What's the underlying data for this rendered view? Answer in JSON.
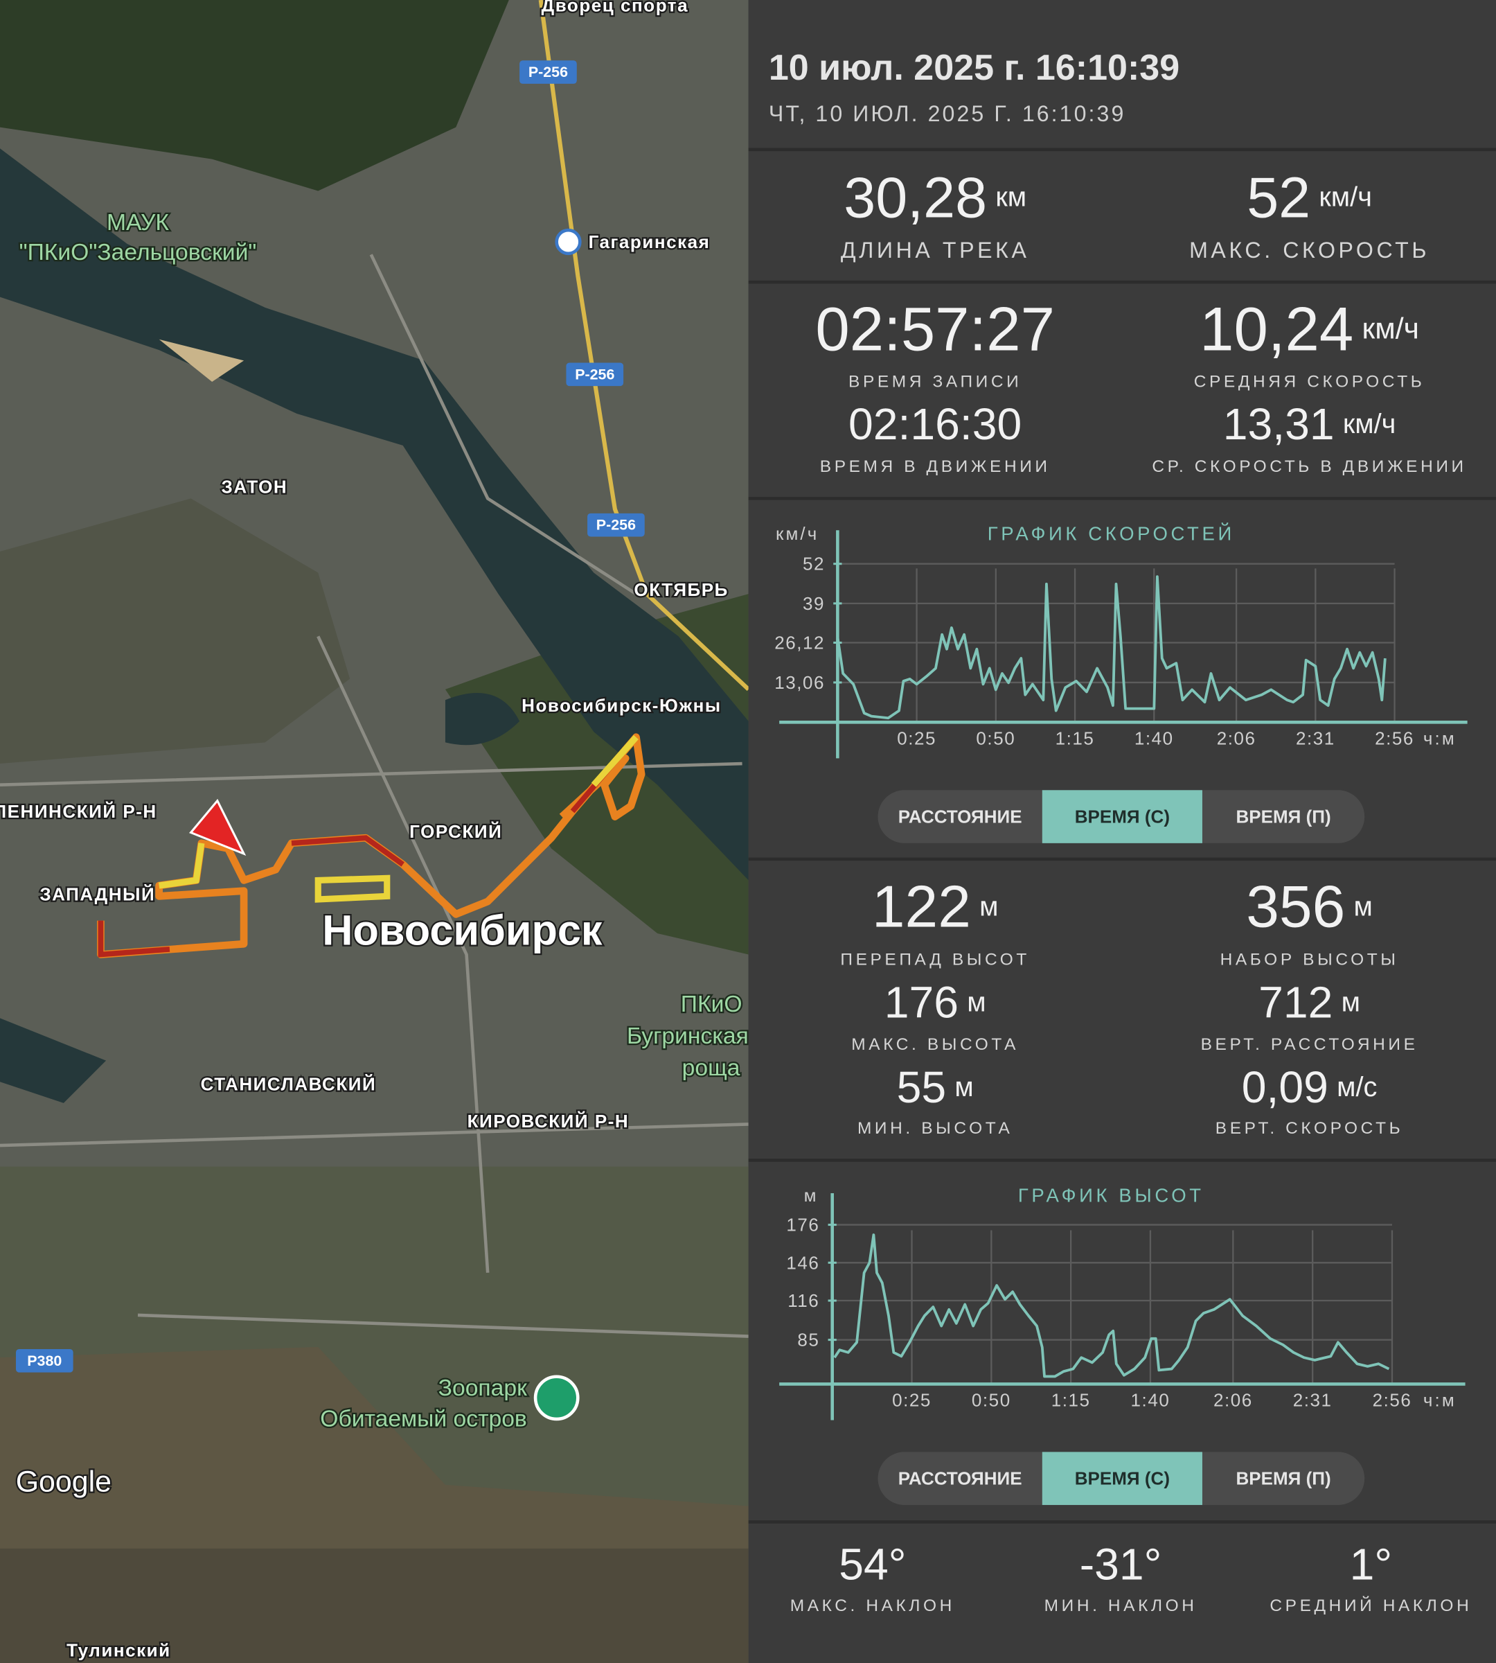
{
  "header": {
    "title": "10 июл. 2025 г. 16:10:39",
    "subtitle": "ЧТ, 10 ИЮЛ. 2025 Г. 16:10:39"
  },
  "track_stats": [
    {
      "value": "30,28",
      "unit": "км",
      "label": "ДЛИНА ТРЕКА"
    },
    {
      "value": "52",
      "unit": "км/ч",
      "label": "МАКС. СКОРОСТЬ"
    },
    {
      "value": "02:57:27",
      "label": "ВРЕМЯ ЗАПИСИ"
    },
    {
      "value": "10,24",
      "unit": "км/ч",
      "label": "СРЕДНЯЯ СКОРОСТЬ"
    },
    {
      "value": "02:16:30",
      "label": "ВРЕМЯ В ДВИЖЕНИИ"
    },
    {
      "value": "13,31",
      "unit": "км/ч",
      "label": "СР. СКОРОСТЬ В ДВИЖЕНИИ"
    }
  ],
  "altitude_stats": [
    {
      "value": "122",
      "unit": "м",
      "label": "ПЕРЕПАД ВЫСОТ"
    },
    {
      "value": "356",
      "unit": "м",
      "label": "НАБОР ВЫСОТЫ"
    },
    {
      "value": "176",
      "unit": "м",
      "label": "МАКС. ВЫСОТА"
    },
    {
      "value": "712",
      "unit": "м",
      "label": "ВЕРТ. РАССТОЯНИЕ"
    },
    {
      "value": "55",
      "unit": "м",
      "label": "МИН. ВЫСОТА"
    },
    {
      "value": "0,09",
      "unit": "м/с",
      "label": "ВЕРТ. СКОРОСТЬ"
    }
  ],
  "slope_stats": [
    {
      "value": "54°",
      "label": "МАКС. НАКЛОН"
    },
    {
      "value": "-31°",
      "label": "МИН. НАКЛОН"
    },
    {
      "value": "1°",
      "label": "СРЕДНИЙ НАКЛОН"
    }
  ],
  "chart_data": [
    {
      "type": "line",
      "title": "ГРАФИК СКОРОСТЕЙ",
      "y_unit": "км/ч",
      "x_unit": "ч:м",
      "color": "#7fc4b8",
      "x": [
        0,
        1.7,
        5,
        8.4,
        10.7,
        16,
        19.4,
        20.8,
        22.8,
        25,
        28,
        31,
        33,
        34.5,
        36,
        38,
        40,
        42,
        44,
        46,
        48,
        50,
        52,
        54,
        56,
        58,
        59.3,
        61.6,
        65,
        66,
        67.6,
        69,
        72,
        75.4,
        78.7,
        82,
        85.3,
        87,
        88,
        89.4,
        91,
        95.5,
        100,
        101,
        102.5,
        104,
        107,
        109,
        112,
        116,
        118,
        120.6,
        124,
        129,
        134,
        137,
        142,
        144,
        147,
        148,
        151,
        152.5,
        155,
        157,
        159,
        161,
        163,
        165,
        167,
        169,
        171,
        172,
        173
      ],
      "values": [
        28,
        16,
        12.5,
        3,
        2,
        1.4,
        3.8,
        13.5,
        14.2,
        12.5,
        15,
        17.7,
        28.8,
        24,
        31,
        24,
        28.8,
        17.7,
        24,
        12.5,
        17.7,
        10.7,
        16,
        13,
        17.7,
        21,
        9,
        12.5,
        7.3,
        45.4,
        14.2,
        3.8,
        11.4,
        13.5,
        10,
        17.7,
        11.4,
        5.5,
        45.4,
        28,
        4.5,
        4.5,
        4.5,
        47.8,
        21,
        17.7,
        19.4,
        7.3,
        10.7,
        6.6,
        16,
        7.3,
        11.4,
        7.3,
        9,
        10.7,
        7.3,
        6.6,
        9,
        20.4,
        18.4,
        7.3,
        5.5,
        14.2,
        17.7,
        24,
        17.7,
        22.9,
        18.4,
        22.9,
        14.2,
        7.3,
        21
      ],
      "xlim": [
        0,
        199
      ],
      "ylim": [
        0,
        63
      ],
      "xticks": [
        {
          "value": 25,
          "label": "0:25"
        },
        {
          "value": 50,
          "label": "0:50"
        },
        {
          "value": 75,
          "label": "1:15"
        },
        {
          "value": 100,
          "label": "1:40"
        },
        {
          "value": 126,
          "label": "2:06"
        },
        {
          "value": 151,
          "label": "2:31"
        },
        {
          "value": 176,
          "label": "2:56"
        }
      ],
      "yticks": [
        52,
        39,
        {
          "value": 26.12,
          "label": "26,12"
        },
        {
          "value": 13.06,
          "label": "13,06"
        }
      ],
      "grid": true
    },
    {
      "type": "line",
      "title": "ГРАФИК ВЫСОТ",
      "y_unit": "м",
      "x_unit": "ч:м",
      "color": "#7fc4b8",
      "x": [
        0.7,
        2.3,
        5,
        7.7,
        10,
        11.7,
        13,
        14,
        15.7,
        17.7,
        19.3,
        21.7,
        24.3,
        27,
        29,
        31.7,
        34.3,
        36.7,
        39,
        41.7,
        44.3,
        46.7,
        49,
        51.7,
        54.3,
        56.7,
        59,
        61.7,
        64.3,
        66,
        66.7,
        70,
        72.7,
        75.7,
        78.3,
        81.7,
        85,
        87,
        88.3,
        89.3,
        91.7,
        95,
        98.3,
        100.3,
        101.7,
        102.7,
        106.7,
        109,
        111.7,
        114.3,
        116.7,
        120,
        125,
        129,
        133.3,
        137.7,
        141.7,
        145,
        148.3,
        151.7,
        156.7,
        159,
        161.7,
        165,
        168.3,
        171.7,
        175
      ],
      "values": [
        71,
        77,
        75,
        83,
        138,
        146,
        168,
        138,
        130,
        104,
        75,
        72,
        83,
        96,
        104,
        111,
        96,
        109,
        98,
        113,
        96,
        109,
        114,
        128,
        117,
        123,
        113,
        104,
        96,
        79,
        56,
        56,
        60,
        62,
        71,
        67,
        75,
        89,
        92,
        66,
        57,
        62,
        71,
        86,
        86,
        61,
        62,
        69,
        79,
        100,
        106,
        109,
        117,
        104,
        96,
        86,
        81,
        75,
        71,
        69,
        72,
        83,
        75,
        66,
        64,
        66,
        62
      ],
      "xlim": [
        0,
        199
      ],
      "ylim": [
        50,
        201
      ],
      "xticks": [
        {
          "value": 25,
          "label": "0:25"
        },
        {
          "value": 50,
          "label": "0:50"
        },
        {
          "value": 75,
          "label": "1:15"
        },
        {
          "value": 100,
          "label": "1:40"
        },
        {
          "value": 126,
          "label": "2:06"
        },
        {
          "value": 151,
          "label": "2:31"
        },
        {
          "value": 176,
          "label": "2:56"
        }
      ],
      "yticks": [
        176,
        146,
        116,
        85
      ],
      "grid": true
    }
  ],
  "chart_controls": [
    {
      "options": [
        "РАССТОЯНИЕ",
        "ВРЕМЯ (С)",
        "ВРЕМЯ (П)"
      ],
      "selected": 1
    },
    {
      "options": [
        "РАССТОЯНИЕ",
        "ВРЕМЯ (С)",
        "ВРЕМЯ (П)"
      ],
      "selected": 1
    }
  ],
  "map": {
    "labels": [
      "Дворец спорта",
      "Р-256",
      "Р-256",
      "Р-256",
      "МАУК",
      "\"ПКиО\"Заельцовский\"",
      "Гагаринская",
      "ЗАТОН",
      "ОКТЯБРЬ",
      "Новосибирск-Южны",
      "ЛЕНИНСКИЙ Р-Н",
      "ГОРСКИЙ",
      "ЗАПАДНЫЙ",
      "Новосибирск",
      "ПКиО",
      "Бугринская",
      "роща",
      "СТАНИСЛАВСКИЙ",
      "КИРОВСКИЙ Р-Н",
      "Р380",
      "Зоопарк",
      "Обитаемый остров",
      "Google",
      "Тулинский"
    ]
  }
}
